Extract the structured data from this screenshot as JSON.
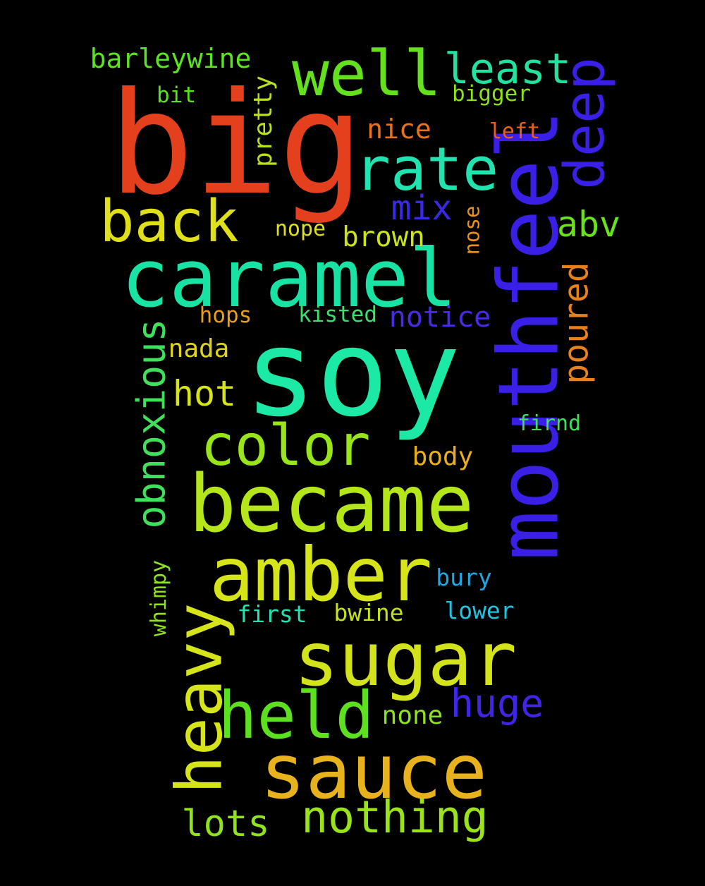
{
  "words": [
    {
      "text": "big",
      "color": "#e5401e",
      "rotated": false
    },
    {
      "text": "soy",
      "color": "#1de9a6",
      "rotated": false
    },
    {
      "text": "mouthfeel",
      "color": "#3a1fe6",
      "rotated": true
    },
    {
      "text": "caramel",
      "color": "#18e2a4",
      "rotated": false
    },
    {
      "text": "became",
      "color": "#b4e61a",
      "rotated": false
    },
    {
      "text": "amber",
      "color": "#d6e41a",
      "rotated": false
    },
    {
      "text": "sugar",
      "color": "#d2e21b",
      "rotated": false
    },
    {
      "text": "sauce",
      "color": "#e8b21c",
      "rotated": false
    },
    {
      "text": "held",
      "color": "#5de01f",
      "rotated": false
    },
    {
      "text": "heavy",
      "color": "#d6e41a",
      "rotated": true
    },
    {
      "text": "well",
      "color": "#62e11c",
      "rotated": false
    },
    {
      "text": "rate",
      "color": "#21e3b0",
      "rotated": false
    },
    {
      "text": "back",
      "color": "#dfe01a",
      "rotated": false
    },
    {
      "text": "color",
      "color": "#98e51b",
      "rotated": false
    },
    {
      "text": "deep",
      "color": "#3a1fe6",
      "rotated": true
    },
    {
      "text": "nothing",
      "color": "#9ae31b",
      "rotated": false
    },
    {
      "text": "least",
      "color": "#23e2a0",
      "rotated": false
    },
    {
      "text": "obnoxious",
      "color": "#3fe05a",
      "rotated": true
    },
    {
      "text": "huge",
      "color": "#4125e6",
      "rotated": false
    },
    {
      "text": "lots",
      "color": "#8ee31c",
      "rotated": false
    },
    {
      "text": "abv",
      "color": "#6ae11d",
      "rotated": false
    },
    {
      "text": "hot",
      "color": "#d6e41a",
      "rotated": false
    },
    {
      "text": "poured",
      "color": "#e8801b",
      "rotated": true
    },
    {
      "text": "mix",
      "color": "#3a2ae6",
      "rotated": false
    },
    {
      "text": "notice",
      "color": "#4a2ae6",
      "rotated": false
    },
    {
      "text": "brown",
      "color": "#cde31b",
      "rotated": false
    },
    {
      "text": "barleywine",
      "color": "#5ce41e",
      "rotated": false
    },
    {
      "text": "nice",
      "color": "#e8731b",
      "rotated": false
    },
    {
      "text": "pretty",
      "color": "#b8e21b",
      "rotated": true
    },
    {
      "text": "body",
      "color": "#e8b01c",
      "rotated": false
    },
    {
      "text": "none",
      "color": "#8fe21c",
      "rotated": false
    },
    {
      "text": "nada",
      "color": "#e0d51a",
      "rotated": false
    },
    {
      "text": "bwine",
      "color": "#c6e01b",
      "rotated": false
    },
    {
      "text": "first",
      "color": "#26e2b0",
      "rotated": false
    },
    {
      "text": "lower",
      "color": "#1fc4e2",
      "rotated": false
    },
    {
      "text": "bury",
      "color": "#1fa7e2",
      "rotated": false
    },
    {
      "text": "bigger",
      "color": "#8fe11c",
      "rotated": false
    },
    {
      "text": "kisted",
      "color": "#3ee06a",
      "rotated": false
    },
    {
      "text": "hops",
      "color": "#e8a01c",
      "rotated": false
    },
    {
      "text": "bit",
      "color": "#5fe01f",
      "rotated": false
    },
    {
      "text": "firnd",
      "color": "#3ee05a",
      "rotated": false
    },
    {
      "text": "left",
      "color": "#e8601b",
      "rotated": false
    },
    {
      "text": "nope",
      "color": "#dfe01a",
      "rotated": false
    },
    {
      "text": "nose",
      "color": "#e8901b",
      "rotated": true
    },
    {
      "text": "whimpy",
      "color": "#8fe21c",
      "rotated": true
    }
  ]
}
